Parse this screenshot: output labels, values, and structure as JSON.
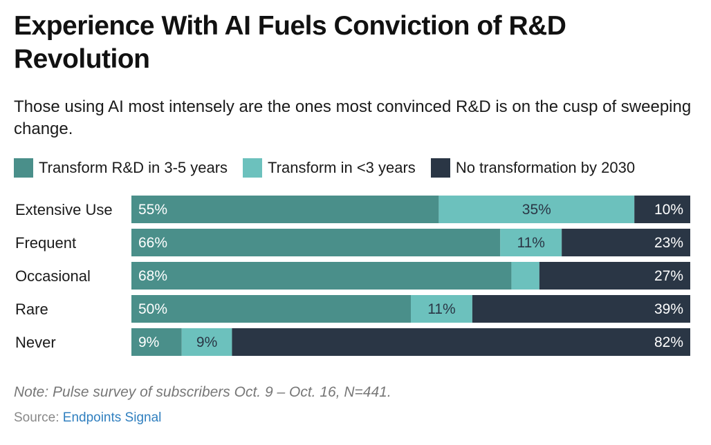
{
  "title": "Experience With AI Fuels Conviction of R&D Revolution",
  "subtitle": "Those using AI most intensely are the ones most convinced R&D is on the cusp of sweeping change.",
  "colors": {
    "series1": "#4a8f8a",
    "series2": "#6cc1bd",
    "series3": "#2a3645"
  },
  "chart_data": {
    "type": "bar",
    "orientation": "horizontal",
    "stacked": true,
    "categories": [
      "Extensive Use",
      "Frequent",
      "Occasional",
      "Rare",
      "Never"
    ],
    "series": [
      {
        "name": "Transform R&D in 3-5 years",
        "values": [
          55,
          66,
          68,
          50,
          9
        ]
      },
      {
        "name": "Transform in <3 years",
        "values": [
          35,
          11,
          5,
          11,
          9
        ]
      },
      {
        "name": "No transformation by 2030",
        "values": [
          10,
          23,
          27,
          39,
          82
        ]
      }
    ],
    "data_labels": [
      [
        "55%",
        "35%",
        "10%"
      ],
      [
        "66%",
        "11%",
        "23%"
      ],
      [
        "68%",
        "",
        "27%"
      ],
      [
        "50%",
        "11%",
        "39%"
      ],
      [
        "9%",
        "9%",
        "82%"
      ]
    ],
    "xlim": [
      0,
      100
    ],
    "legend": "top"
  },
  "note": "Note: Pulse survey of subscribers Oct. 9 – Oct. 16, N=441.",
  "source": {
    "prefix": "Source: ",
    "link": "Endpoints Signal"
  }
}
